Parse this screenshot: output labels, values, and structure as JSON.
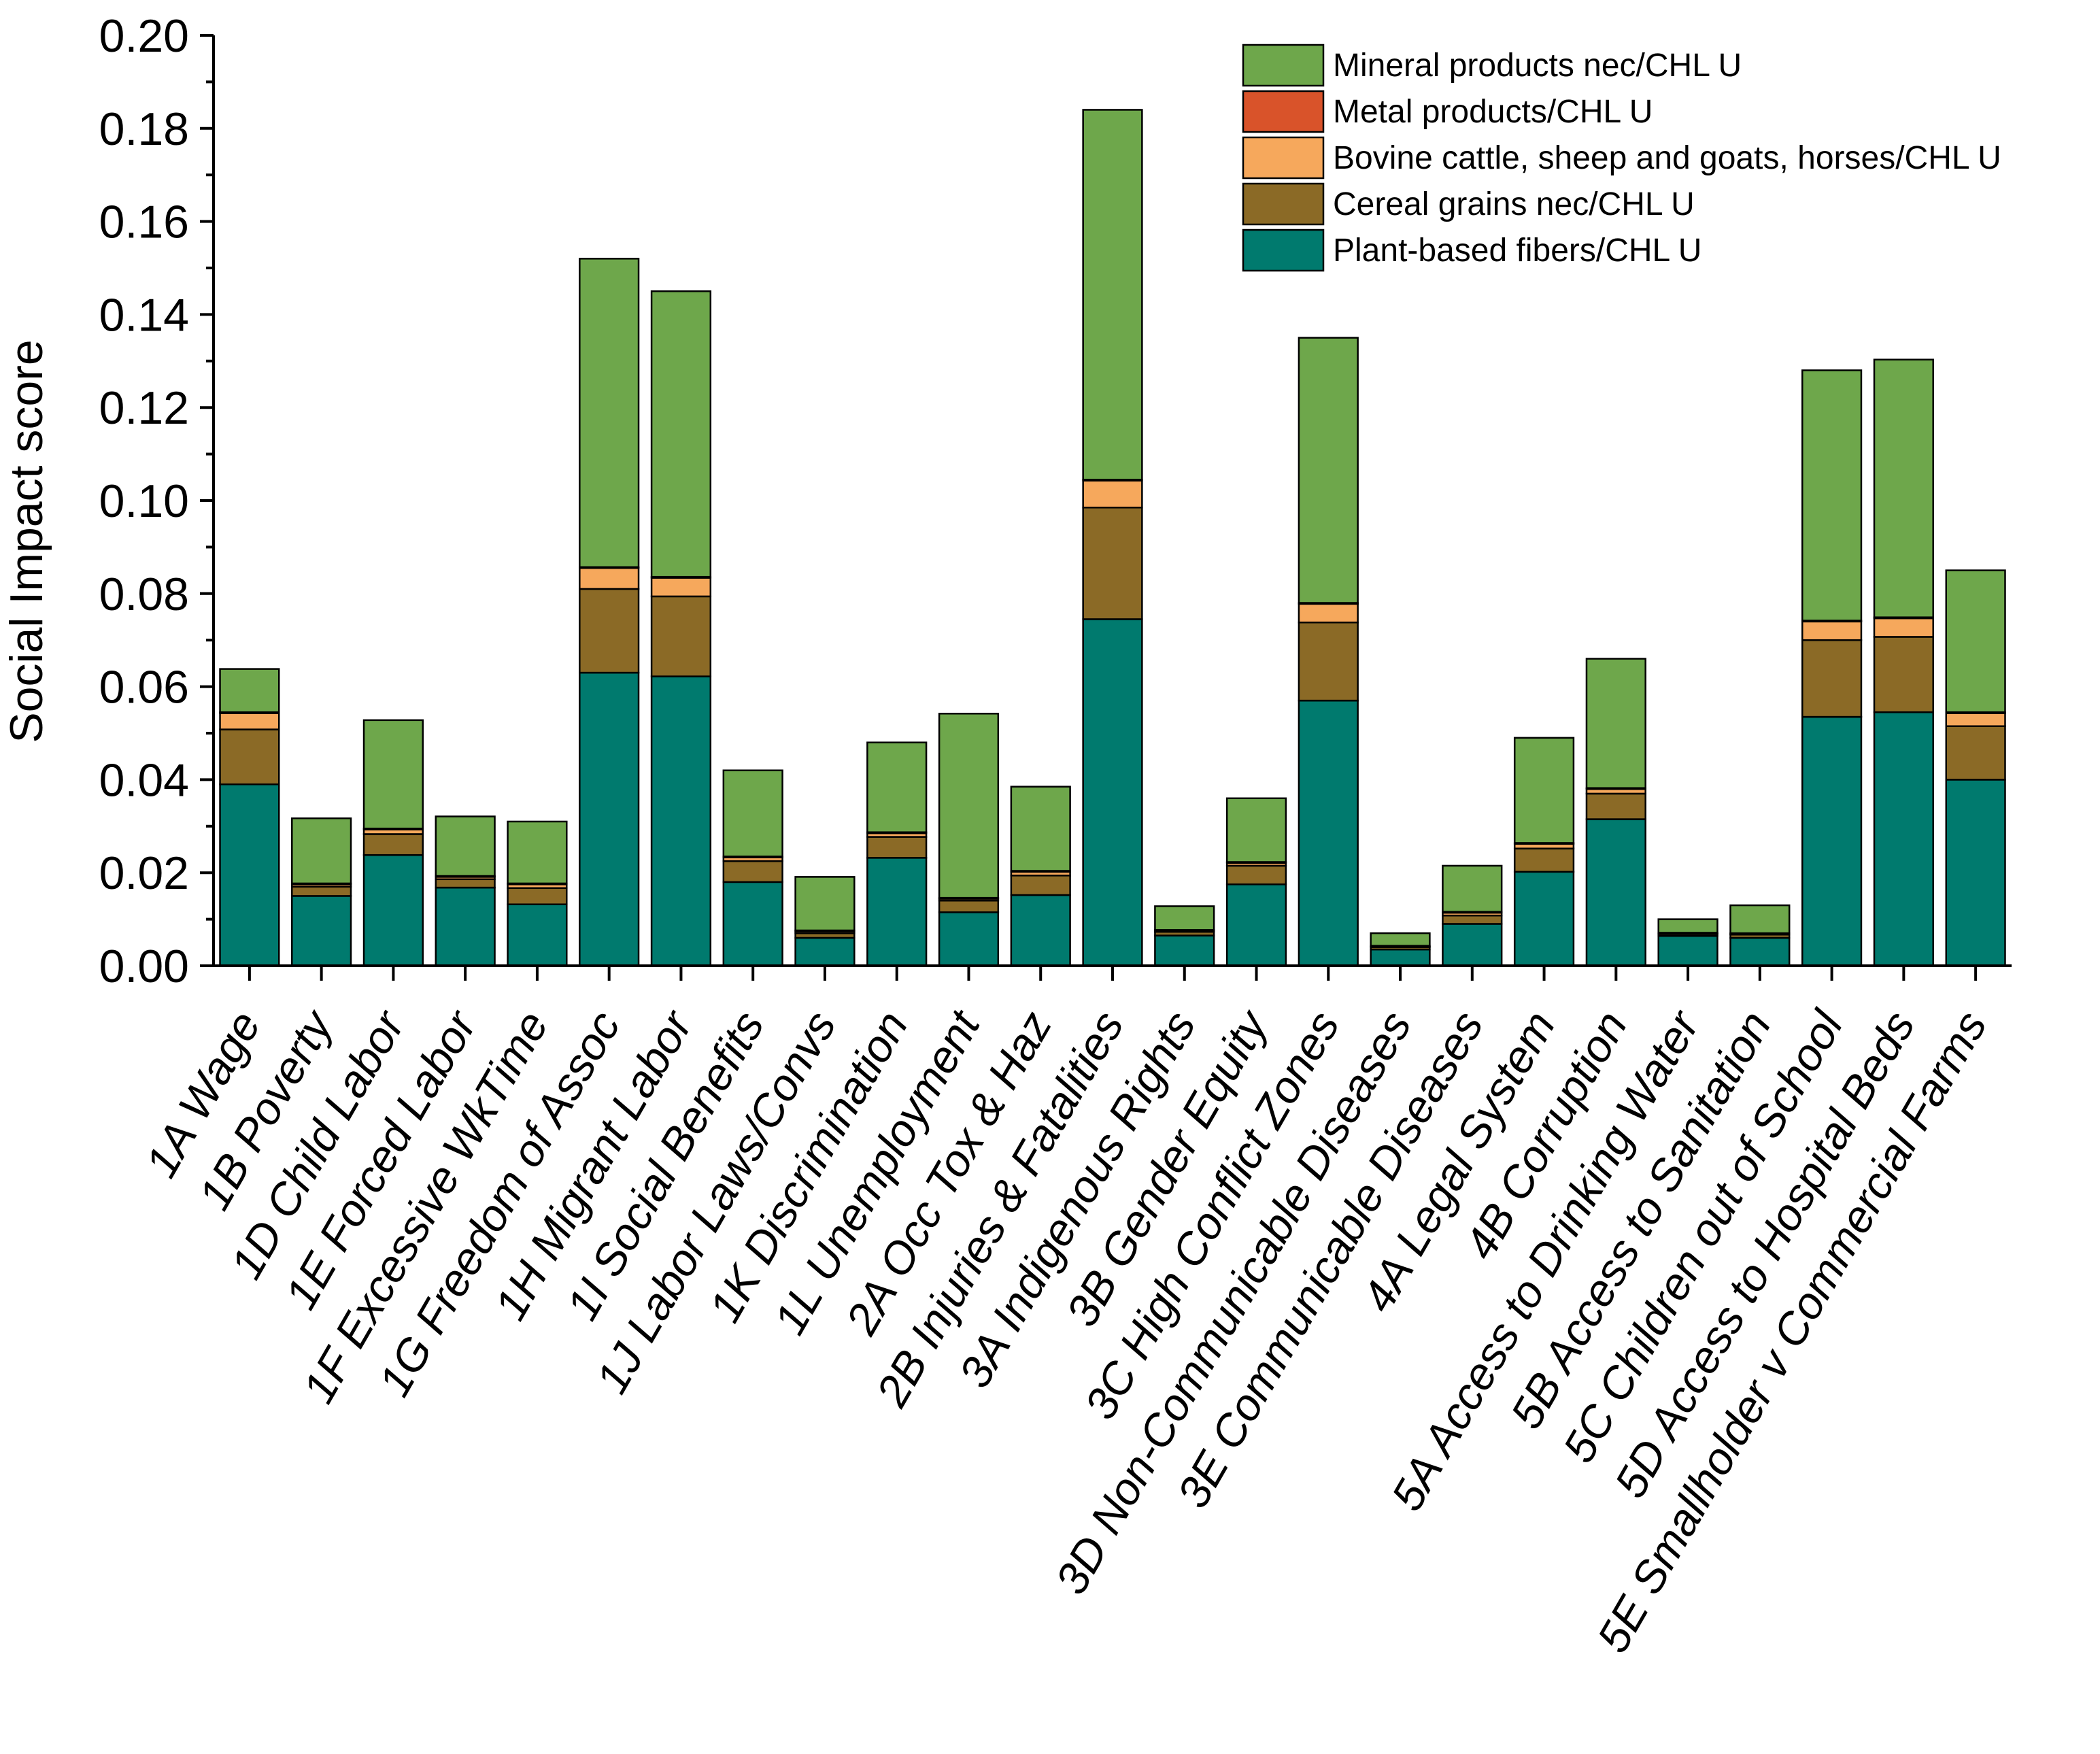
{
  "chart_data": {
    "type": "bar",
    "stacked": true,
    "title": "",
    "xlabel": "",
    "ylabel": "Social Impact score",
    "ylim": [
      0,
      0.2
    ],
    "y_ticks": [
      "0.00",
      "0.02",
      "0.04",
      "0.06",
      "0.08",
      "0.10",
      "0.12",
      "0.14",
      "0.16",
      "0.18",
      "0.20"
    ],
    "grid": false,
    "legend_position": "top-right",
    "categories": [
      "1A Wage",
      "1B Poverty",
      "1D Child Labor",
      "1E Forced Labor",
      "1F Excessive WkTime",
      "1G Freedom of Assoc",
      "1H Migrant Labor",
      "1I Social Benefits",
      "1J Labor Laws/Convs",
      "1K Discrimination",
      "1L Unemployment",
      "2A Occ Tox & Haz",
      "2B Injuries & Fatalities",
      "3A Indigenous Rights",
      "3B Gender Equity",
      "3C High Conflict Zones",
      "3D Non-Communicable Diseases",
      "3E Communicable Diseases",
      "4A Legal System",
      "4B Corruption",
      "5A Access to Drinking Water",
      "5B Access to Sanitation",
      "5C Children out of School",
      "5D Access to Hospital Beds",
      "5E Smallholder v Commercial Farms"
    ],
    "series": [
      {
        "name": "Plant-based fibers/CHL U",
        "color": "#007a6e",
        "values": [
          0.039,
          0.015,
          0.0238,
          0.0168,
          0.0132,
          0.063,
          0.0622,
          0.018,
          0.006,
          0.0232,
          0.0115,
          0.0152,
          0.0745,
          0.0065,
          0.0175,
          0.057,
          0.0035,
          0.009,
          0.0202,
          0.0315,
          0.0064,
          0.006,
          0.0535,
          0.0545,
          0.04
        ]
      },
      {
        "name": "Cereal grains nec/CHL U",
        "color": "#8b6a26",
        "values": [
          0.0118,
          0.002,
          0.0045,
          0.0018,
          0.0035,
          0.018,
          0.0172,
          0.0045,
          0.001,
          0.0045,
          0.0025,
          0.0042,
          0.024,
          0.0008,
          0.004,
          0.0168,
          0.0005,
          0.0018,
          0.005,
          0.0055,
          0.0004,
          0.0007,
          0.0165,
          0.0162,
          0.0115
        ]
      },
      {
        "name": "Bovine cattle, sheep and goats, horses/CHL U",
        "color": "#f6a85c",
        "values": [
          0.0035,
          0.0005,
          0.001,
          0.0005,
          0.0008,
          0.0045,
          0.004,
          0.0008,
          0.0004,
          0.0008,
          0.0004,
          0.0008,
          0.0058,
          0.0002,
          0.0006,
          0.004,
          0.0001,
          0.0006,
          0.001,
          0.001,
          0.0001,
          0.0001,
          0.004,
          0.004,
          0.0028
        ]
      },
      {
        "name": "Metal products/CHL U",
        "color": "#d9532a",
        "values": [
          0.0002,
          0.0002,
          0.0002,
          0.0002,
          0.0002,
          0.0002,
          0.0002,
          0.0002,
          0.0002,
          0.0002,
          0.0002,
          0.0002,
          0.0002,
          0.0002,
          0.0002,
          0.0002,
          0.0002,
          0.0002,
          0.0002,
          0.0002,
          0.0002,
          0.0002,
          0.0002,
          0.0002,
          0.0002
        ]
      },
      {
        "name": "Mineral products nec/CHL U",
        "color": "#6ea74b",
        "values": [
          0.0093,
          0.014,
          0.0233,
          0.0128,
          0.0133,
          0.0663,
          0.0614,
          0.0185,
          0.0115,
          0.0193,
          0.0396,
          0.0181,
          0.0795,
          0.0051,
          0.0137,
          0.057,
          0.0027,
          0.0099,
          0.0226,
          0.0278,
          0.0029,
          0.006,
          0.0538,
          0.0554,
          0.0305
        ]
      }
    ]
  }
}
